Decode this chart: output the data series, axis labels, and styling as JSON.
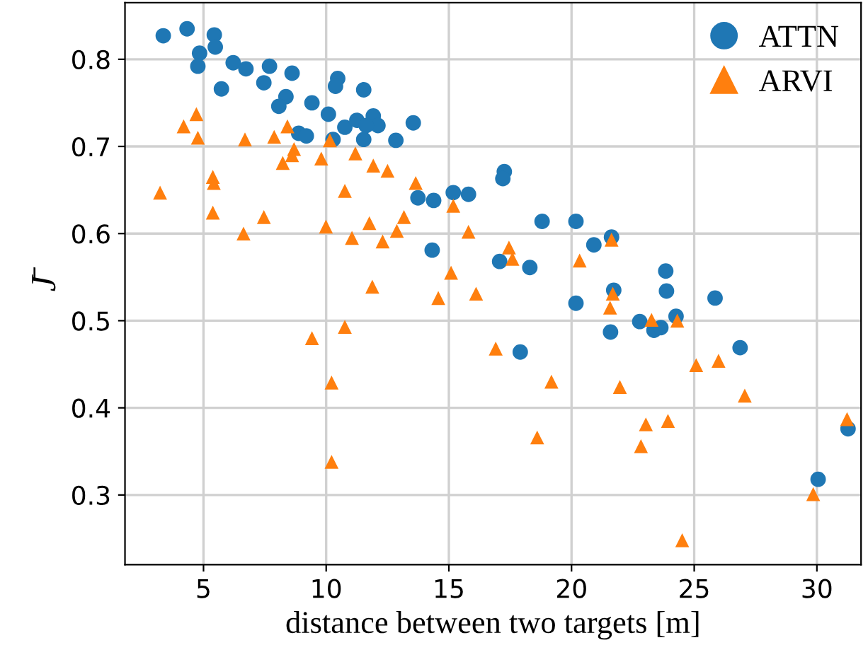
{
  "chart_data": {
    "type": "scatter",
    "xlabel": "distance between two targets [m]",
    "ylabel": "J̄",
    "xlim": [
      1.8,
      31.8
    ],
    "ylim": [
      0.22,
      0.865
    ],
    "xticks": [
      5,
      10,
      15,
      20,
      25,
      30
    ],
    "yticks": [
      0.3,
      0.4,
      0.5,
      0.6,
      0.7,
      0.8
    ],
    "grid": true,
    "legend": "top right",
    "series": [
      {
        "name": "ATTN",
        "color": "#1f77b4",
        "marker": "circle",
        "x": [
          3.36,
          4.33,
          5.44,
          5.48,
          4.84,
          4.77,
          5.73,
          6.21,
          6.73,
          7.69,
          7.46,
          8.61,
          8.36,
          8.07,
          9.42,
          10.09,
          10.47,
          10.38,
          8.88,
          9.19,
          10.76,
          10.28,
          11.53,
          11.25,
          11.53,
          11.92,
          12.11,
          11.63,
          13.55,
          12.84,
          17.26,
          17.2,
          13.74,
          14.38,
          15.18,
          15.8,
          18.8,
          20.18,
          20.91,
          14.32,
          17.07,
          18.3,
          20.18,
          17.91,
          21.63,
          23.84,
          23.87,
          21.72,
          25.85,
          22.78,
          23.36,
          23.64,
          24.26,
          21.59,
          26.87,
          31.27,
          30.05
        ],
        "values": [
          0.827,
          0.835,
          0.828,
          0.814,
          0.807,
          0.792,
          0.766,
          0.796,
          0.789,
          0.792,
          0.773,
          0.784,
          0.757,
          0.746,
          0.75,
          0.737,
          0.778,
          0.769,
          0.715,
          0.712,
          0.722,
          0.708,
          0.765,
          0.73,
          0.708,
          0.735,
          0.724,
          0.724,
          0.727,
          0.707,
          0.671,
          0.663,
          0.641,
          0.638,
          0.647,
          0.645,
          0.614,
          0.614,
          0.587,
          0.581,
          0.568,
          0.561,
          0.52,
          0.464,
          0.596,
          0.557,
          0.534,
          0.535,
          0.526,
          0.499,
          0.489,
          0.492,
          0.505,
          0.487,
          0.469,
          0.376,
          0.318
        ]
      },
      {
        "name": "ARVI",
        "color": "#ff7f0e",
        "marker": "triangle",
        "x": [
          4.71,
          4.19,
          4.77,
          3.23,
          5.38,
          5.42,
          5.38,
          6.69,
          7.46,
          6.63,
          7.88,
          8.42,
          8.69,
          8.61,
          8.23,
          9.8,
          10.15,
          11.19,
          10.76,
          9.99,
          11.05,
          10.76,
          9.42,
          11.92,
          12.5,
          13.65,
          11.76,
          13.17,
          12.88,
          12.3,
          11.88,
          15.18,
          15.8,
          15.09,
          14.57,
          16.11,
          17.45,
          17.59,
          20.33,
          16.91,
          19.18,
          21.63,
          21.68,
          21.57,
          23.26,
          24.31,
          25.08,
          25.99,
          27.06,
          21.97,
          23.03,
          23.93,
          22.83,
          31.23,
          29.85,
          18.6,
          24.51,
          10.22,
          10.22
        ],
        "values": [
          0.737,
          0.723,
          0.71,
          0.647,
          0.665,
          0.658,
          0.624,
          0.708,
          0.619,
          0.6,
          0.711,
          0.723,
          0.697,
          0.69,
          0.681,
          0.686,
          0.707,
          0.692,
          0.649,
          0.608,
          0.595,
          0.493,
          0.48,
          0.678,
          0.672,
          0.658,
          0.612,
          0.619,
          0.603,
          0.591,
          0.539,
          0.632,
          0.602,
          0.555,
          0.526,
          0.531,
          0.584,
          0.571,
          0.569,
          0.468,
          0.43,
          0.593,
          0.531,
          0.515,
          0.501,
          0.5,
          0.449,
          0.454,
          0.414,
          0.424,
          0.381,
          0.385,
          0.356,
          0.387,
          0.301,
          0.366,
          0.248,
          0.429,
          0.338
        ]
      }
    ]
  }
}
